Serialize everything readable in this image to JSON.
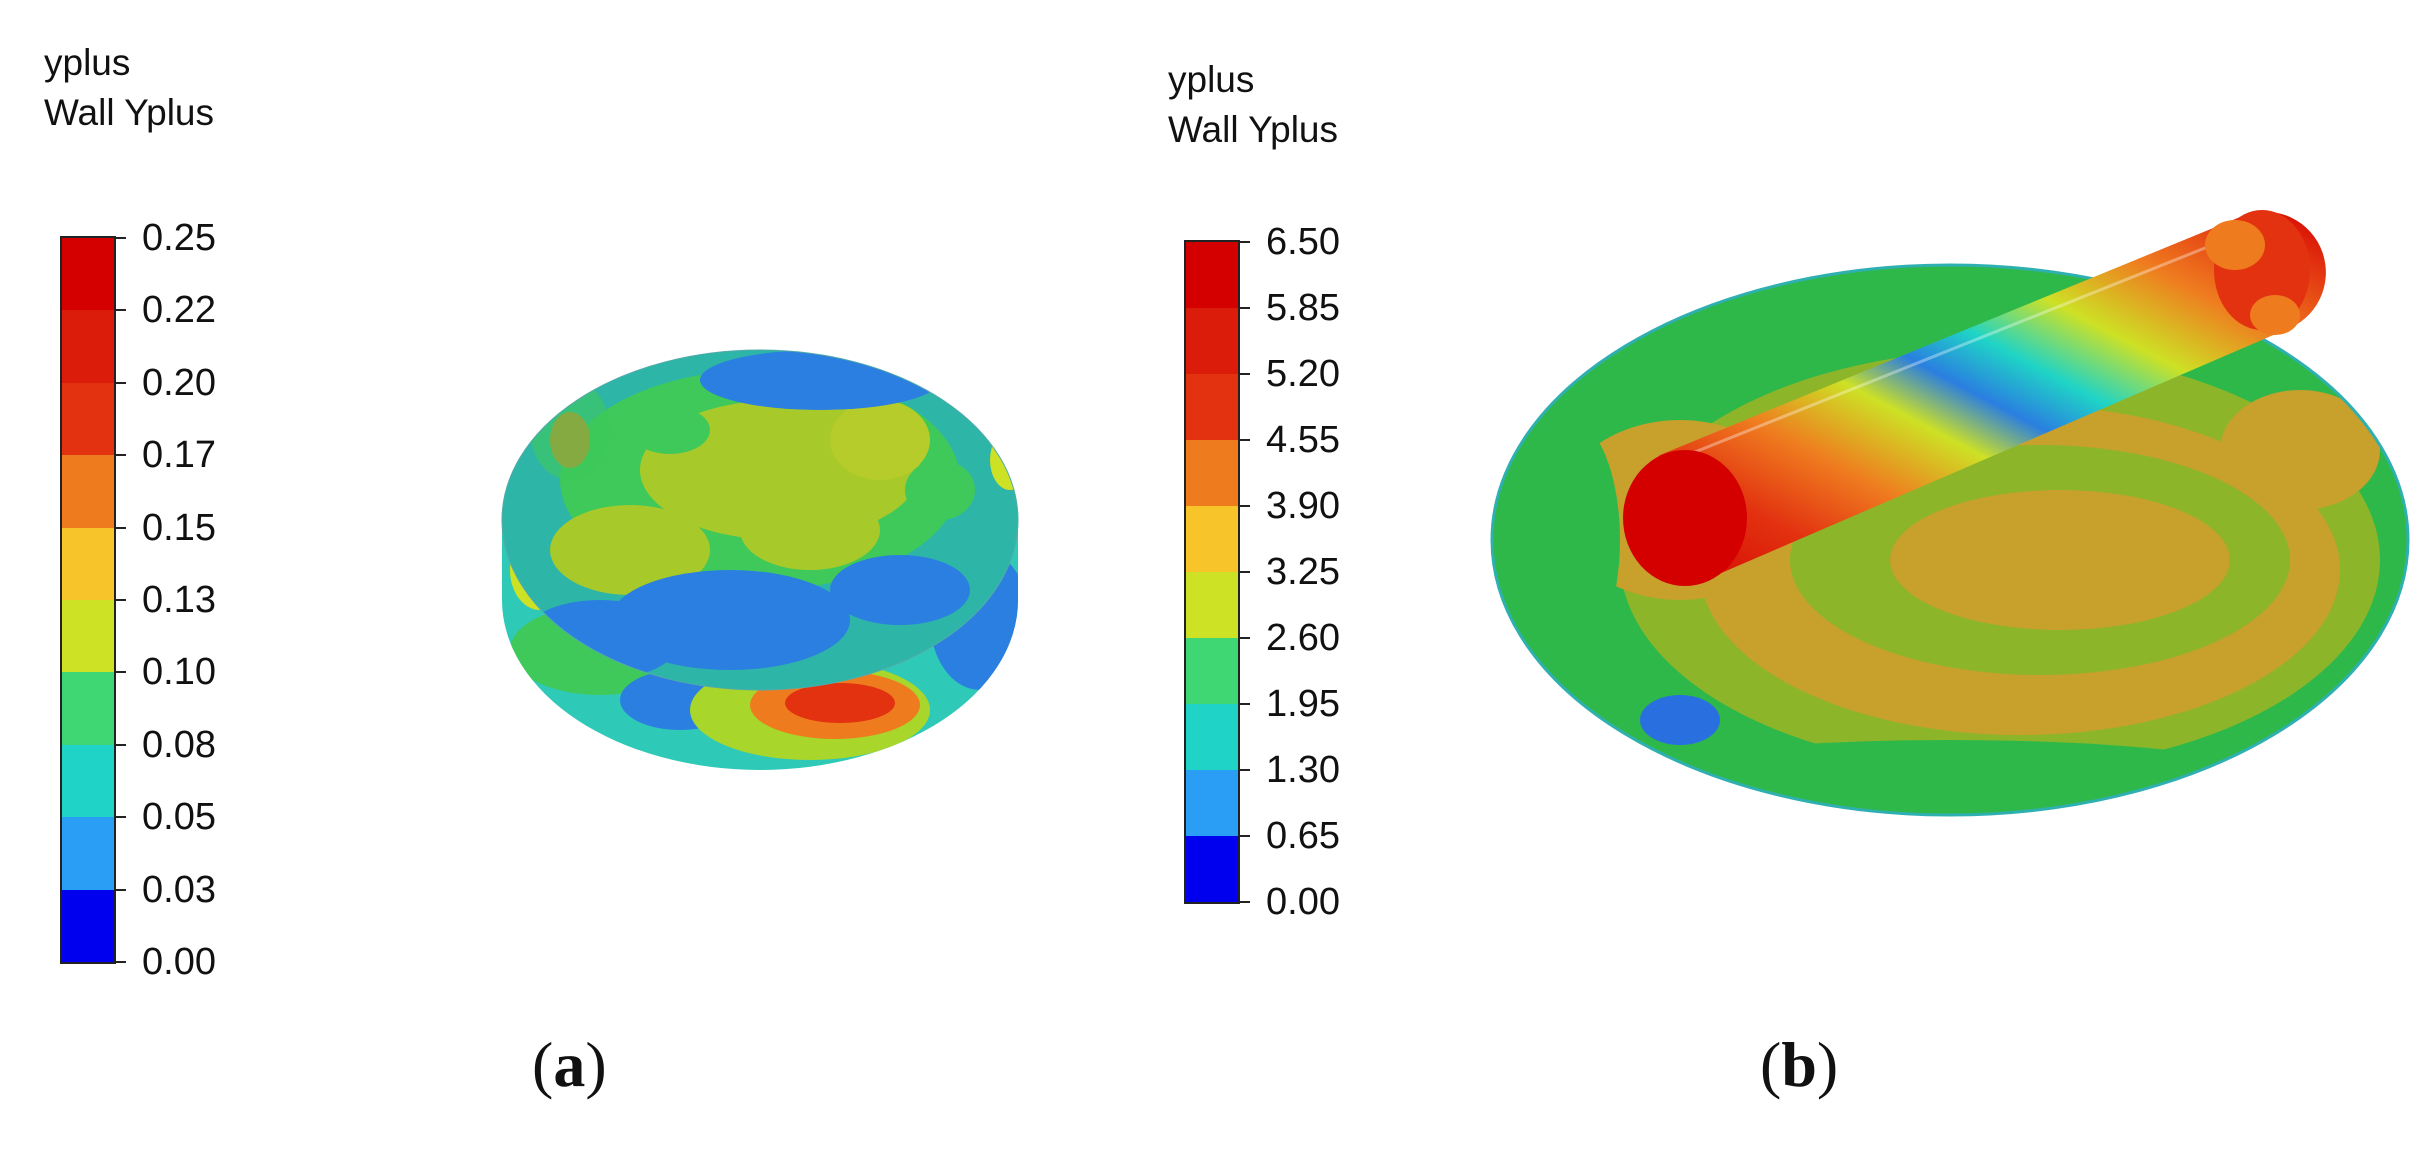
{
  "panel_a": {
    "legend_title_line1": "yplus",
    "legend_title_line2": "Wall Yplus",
    "ticks": [
      "0.25",
      "0.22",
      "0.20",
      "0.17",
      "0.15",
      "0.13",
      "0.10",
      "0.08",
      "0.05",
      "0.03",
      "0.00"
    ],
    "colors": [
      "#d40000",
      "#dc1c0a",
      "#e23210",
      "#ef7b1f",
      "#f7c52a",
      "#cde125",
      "#3ed773",
      "#1fd4c6",
      "#2a9ef5",
      "#0000ee"
    ],
    "caption_letter": "a"
  },
  "panel_b": {
    "legend_title_line1": "yplus",
    "legend_title_line2": "Wall Yplus",
    "ticks": [
      "6.50",
      "5.85",
      "5.20",
      "4.55",
      "3.90",
      "3.25",
      "2.60",
      "1.95",
      "1.30",
      "0.65",
      "0.00"
    ],
    "colors": [
      "#d40000",
      "#dc1c0a",
      "#e23210",
      "#ef7b1f",
      "#f7c52a",
      "#cde125",
      "#3ed773",
      "#1fd4c6",
      "#2a9ef5",
      "#0000ee"
    ],
    "caption_letter": "b"
  }
}
